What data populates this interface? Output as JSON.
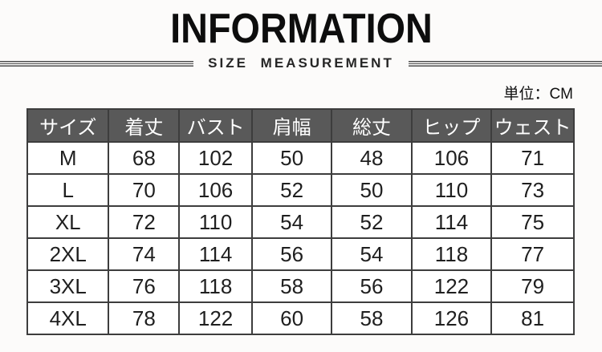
{
  "chart_data": {
    "type": "table",
    "title": "INFORMATION",
    "subtitle": "SIZE MEASUREMENT",
    "unit_label": "単位：CM",
    "columns": [
      "サイズ",
      "着丈",
      "バスト",
      "肩幅",
      "総丈",
      "ヒップ",
      "ウェスト"
    ],
    "rows": [
      [
        "M",
        "68",
        "102",
        "50",
        "48",
        "106",
        "71"
      ],
      [
        "L",
        "70",
        "106",
        "52",
        "50",
        "110",
        "73"
      ],
      [
        "XL",
        "72",
        "110",
        "54",
        "52",
        "114",
        "75"
      ],
      [
        "2XL",
        "74",
        "114",
        "56",
        "54",
        "118",
        "77"
      ],
      [
        "3XL",
        "76",
        "118",
        "58",
        "56",
        "122",
        "79"
      ],
      [
        "4XL",
        "78",
        "122",
        "60",
        "58",
        "126",
        "81"
      ]
    ]
  },
  "colors": {
    "header_background": "#595959",
    "header_text": "#ffffff",
    "table_border": "#3d3d3d",
    "body_text": "#1f1f1f",
    "title_text": "#0d0d0d",
    "page_background": "#fcfbfa"
  }
}
